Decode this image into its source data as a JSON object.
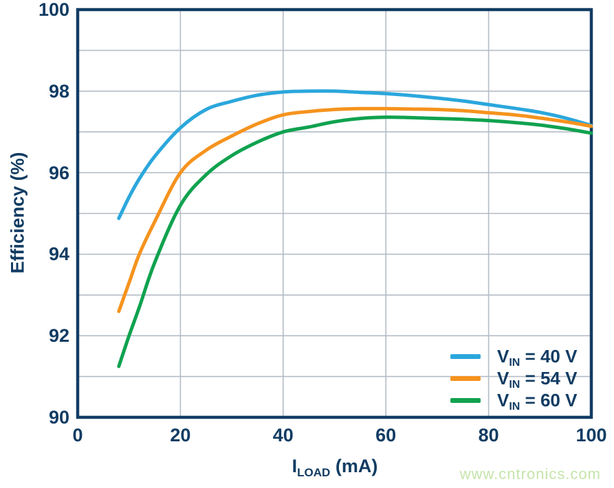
{
  "watermark": "www.cntronics.com",
  "colors": {
    "navy": "#123c63",
    "grid": "#b4bcc6",
    "background": "#ffffff",
    "watermark_green": "#c6e4ab",
    "series_blue": "#2ba7dc",
    "series_orange": "#f5931e",
    "series_green": "#10a24f"
  },
  "chart_data": {
    "type": "line",
    "title": "",
    "ylabel": "Efficiency (%)",
    "xlabel": "ILOAD (mA)",
    "xlabel_parts": {
      "pre": "I",
      "sub": "LOAD",
      "post": " (mA)"
    },
    "xlim": [
      0,
      100
    ],
    "ylim": [
      90,
      100
    ],
    "x_ticks": [
      0,
      20,
      40,
      60,
      80,
      100
    ],
    "y_ticks": [
      90,
      92,
      94,
      96,
      98,
      100
    ],
    "x_grid_step": 20,
    "y_grid_step": 1,
    "grid": true,
    "legend_position": "inside-bottom-right",
    "x": [
      8,
      10,
      12,
      15,
      20,
      25,
      30,
      35,
      40,
      45,
      50,
      55,
      60,
      65,
      70,
      75,
      80,
      85,
      90,
      95,
      100
    ],
    "series": [
      {
        "name": "VIN = 40 V",
        "name_parts": {
          "pre": "V",
          "sub": "IN",
          "post": " = 40 V"
        },
        "color": "#2ba7dc",
        "values": [
          94.88,
          95.4,
          95.85,
          96.4,
          97.1,
          97.55,
          97.75,
          97.9,
          97.98,
          98.0,
          98.0,
          97.97,
          97.94,
          97.89,
          97.83,
          97.76,
          97.67,
          97.58,
          97.48,
          97.34,
          97.16
        ]
      },
      {
        "name": "VIN = 54 V",
        "name_parts": {
          "pre": "V",
          "sub": "IN",
          "post": " = 54 V"
        },
        "color": "#f5931e",
        "values": [
          92.6,
          93.3,
          94.0,
          94.8,
          96.0,
          96.55,
          96.9,
          97.2,
          97.42,
          97.5,
          97.55,
          97.57,
          97.57,
          97.56,
          97.55,
          97.52,
          97.47,
          97.42,
          97.34,
          97.25,
          97.14
        ]
      },
      {
        "name": "VIN = 60 V",
        "name_parts": {
          "pre": "V",
          "sub": "IN",
          "post": " = 60 V"
        },
        "color": "#10a24f",
        "values": [
          91.25,
          92.0,
          92.7,
          93.8,
          95.2,
          95.95,
          96.42,
          96.75,
          97.0,
          97.12,
          97.25,
          97.33,
          97.36,
          97.35,
          97.33,
          97.31,
          97.28,
          97.23,
          97.17,
          97.08,
          96.97
        ]
      }
    ]
  }
}
